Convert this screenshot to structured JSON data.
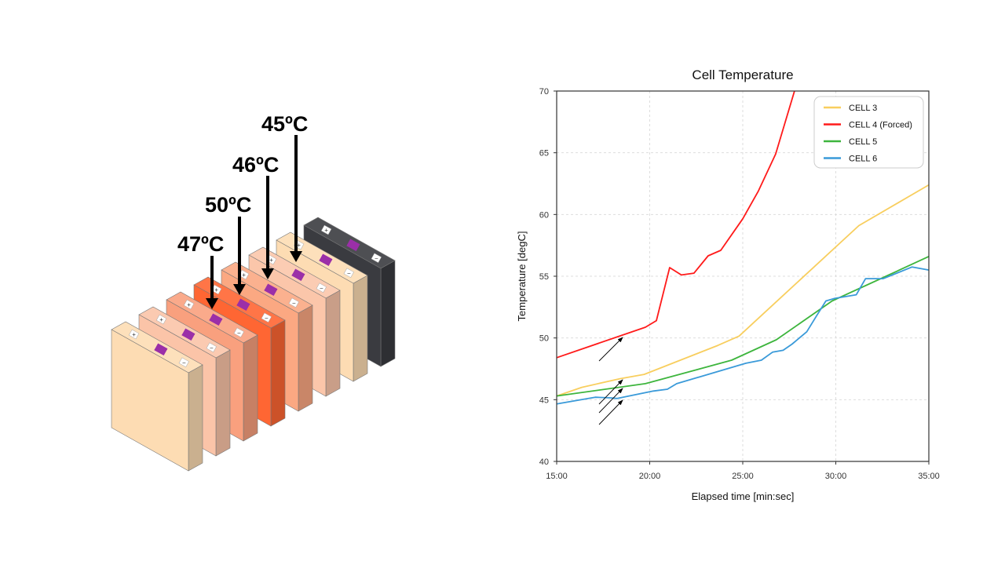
{
  "illustration": {
    "cell_colors": [
      "#FDDCB3",
      "#FBC4A8",
      "#F9A07E",
      "#FF6633",
      "#FBA882",
      "#FBC6AA",
      "#FDDCB3",
      "#3A3B40"
    ],
    "terminal_plus": "+",
    "terminal_minus": "−",
    "temperature_labels": [
      {
        "text": "47ºC",
        "cell": "CELL 3"
      },
      {
        "text": "50ºC",
        "cell": "CELL 4"
      },
      {
        "text": "46ºC",
        "cell": "CELL 5"
      },
      {
        "text": "45ºC",
        "cell": "CELL 6"
      }
    ]
  },
  "chart_data": {
    "type": "line",
    "title": "Cell Temperature",
    "xlabel": "Elapsed time [min:sec]",
    "ylabel": "Temperature [degC]",
    "xlim": [
      15,
      35
    ],
    "ylim": [
      40,
      70
    ],
    "x_unit": "minutes",
    "xticks": [
      "15:00",
      "20:00",
      "25:00",
      "30:00",
      "35:00"
    ],
    "yticks": [
      "40",
      "45",
      "50",
      "55",
      "60",
      "65",
      "70"
    ],
    "grid": true,
    "legend_position": "top-right",
    "series": [
      {
        "name": "CELL 3",
        "color": "#F8CE5E",
        "points": [
          [
            15,
            45.3
          ],
          [
            16.35,
            46.0
          ],
          [
            18.4,
            46.7
          ],
          [
            19.7,
            47.05
          ],
          [
            23.67,
            49.4
          ],
          [
            24.8,
            50.15
          ],
          [
            31.24,
            59.1
          ],
          [
            35,
            62.4
          ]
        ]
      },
      {
        "name": "CELL  4 (Forced)",
        "color": "#FF1A1A",
        "points": [
          [
            15,
            48.4
          ],
          [
            19.77,
            50.87
          ],
          [
            20.36,
            51.4
          ],
          [
            21.07,
            55.7
          ],
          [
            21.7,
            55.1
          ],
          [
            22.38,
            55.25
          ],
          [
            23.14,
            56.65
          ],
          [
            23.82,
            57.1
          ],
          [
            25.0,
            59.65
          ],
          [
            25.84,
            61.9
          ],
          [
            26.77,
            64.9
          ],
          [
            27.78,
            70
          ]
        ]
      },
      {
        "name": "CELL 5",
        "color": "#3DB53D",
        "points": [
          [
            15,
            45.3
          ],
          [
            19.77,
            46.3
          ],
          [
            24.4,
            48.2
          ],
          [
            26.8,
            49.85
          ],
          [
            29.8,
            53.0
          ],
          [
            32.7,
            55.0
          ],
          [
            35,
            56.6
          ]
        ]
      },
      {
        "name": "CELL 6",
        "color": "#3A9AD9",
        "points": [
          [
            15,
            44.65
          ],
          [
            17.07,
            45.2
          ],
          [
            17.9,
            45.15
          ],
          [
            18.25,
            45.1
          ],
          [
            20.2,
            45.7
          ],
          [
            20.95,
            45.85
          ],
          [
            21.45,
            46.3
          ],
          [
            23.6,
            47.25
          ],
          [
            25.17,
            47.95
          ],
          [
            26.0,
            48.2
          ],
          [
            26.6,
            48.85
          ],
          [
            27.17,
            49.0
          ],
          [
            27.65,
            49.5
          ],
          [
            28.44,
            50.5
          ],
          [
            28.97,
            51.8
          ],
          [
            29.47,
            53.0
          ],
          [
            29.94,
            53.2
          ],
          [
            31.1,
            53.5
          ],
          [
            31.6,
            54.8
          ],
          [
            32.55,
            54.8
          ],
          [
            34.1,
            55.75
          ],
          [
            35,
            55.5
          ]
        ]
      }
    ]
  }
}
